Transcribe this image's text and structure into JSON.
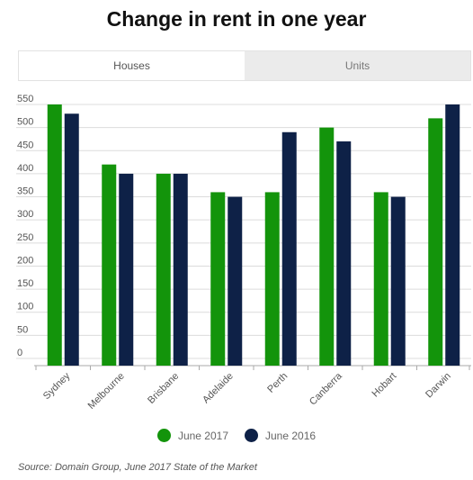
{
  "title": "Change in rent in one year",
  "tabs": [
    {
      "label": "Houses",
      "active": true
    },
    {
      "label": "Units",
      "active": false
    }
  ],
  "legend": [
    {
      "label": "June 2017",
      "color": "#13940b"
    },
    {
      "label": "June 2016",
      "color": "#0e2147"
    }
  ],
  "source": "Source: Domain Group, June 2017 State of the Market",
  "chart_data": {
    "type": "bar",
    "categories": [
      "Sydney",
      "Melbourne",
      "Brisbane",
      "Adelaide",
      "Perth",
      "Canberra",
      "Hobart",
      "Darwin"
    ],
    "series": [
      {
        "name": "June 2017",
        "color": "#13940b",
        "values": [
          550,
          420,
          400,
          360,
          360,
          500,
          360,
          520
        ]
      },
      {
        "name": "June 2016",
        "color": "#0e2147",
        "values": [
          530,
          400,
          400,
          350,
          490,
          470,
          350,
          550
        ]
      }
    ],
    "yticks": [
      0,
      50,
      100,
      150,
      200,
      250,
      300,
      350,
      400,
      450,
      500,
      550
    ],
    "ylim": [
      0,
      550
    ],
    "grid": true,
    "legend_position": "bottom"
  }
}
